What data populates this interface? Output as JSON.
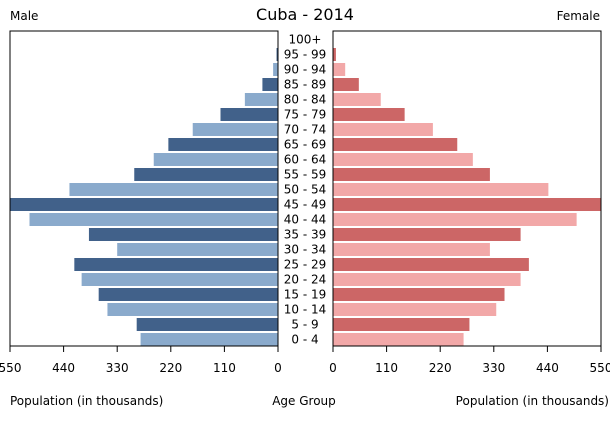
{
  "chart_data": {
    "type": "bar",
    "orientation": "horizontal",
    "layout": "population-pyramid",
    "title": "Cuba - 2014",
    "left_label": "Male",
    "right_label": "Female",
    "xlabel_left": "Population (in thousands)",
    "xlabel_center": "Age Group",
    "xlabel_right": "Population (in thousands)",
    "xlim": [
      0,
      550
    ],
    "ticks": [
      0,
      110,
      220,
      330,
      440,
      550
    ],
    "grid": false,
    "categories": [
      "100+",
      "95 - 99",
      "90 - 94",
      "85 - 89",
      "80 - 84",
      "75 - 79",
      "70 - 74",
      "65 - 69",
      "60 - 64",
      "55 - 59",
      "50 - 54",
      "45 - 49",
      "40 - 44",
      "35 - 39",
      "30 - 34",
      "25 - 29",
      "20 - 24",
      "15 - 19",
      "10 - 14",
      "5 - 9",
      "0 - 4"
    ],
    "series": [
      {
        "name": "Male",
        "values": [
          1,
          3,
          10,
          32,
          68,
          118,
          175,
          225,
          255,
          295,
          428,
          550,
          510,
          388,
          330,
          418,
          403,
          368,
          350,
          290,
          282
        ],
        "colors": [
          "#8aaacc",
          "#41618a"
        ]
      },
      {
        "name": "Female",
        "values": [
          1,
          6,
          25,
          53,
          98,
          147,
          205,
          255,
          287,
          322,
          442,
          550,
          500,
          385,
          322,
          402,
          385,
          352,
          335,
          280,
          268
        ],
        "colors": [
          "#f2a8a8",
          "#cc6666"
        ]
      }
    ]
  }
}
